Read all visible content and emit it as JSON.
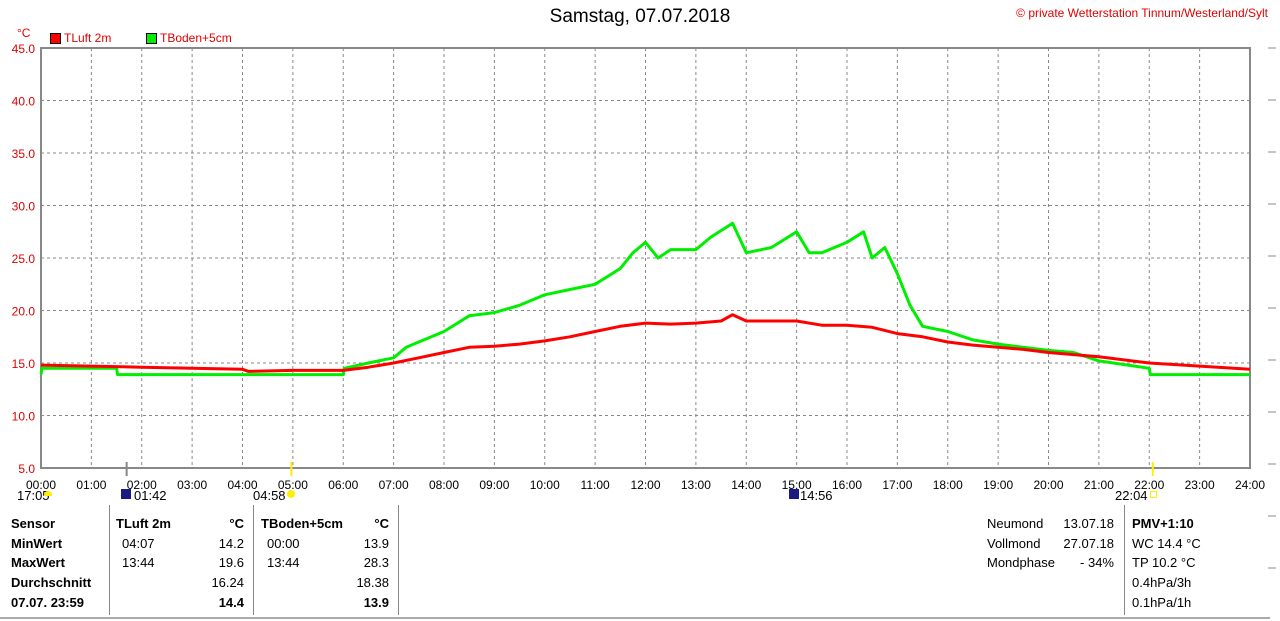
{
  "header": {
    "title": "Samstag, 07.07.2018",
    "copyright": "© private Wetterstation Tinnum/Westerland/Sylt",
    "unit": "°C"
  },
  "colors": {
    "luft": "#ff0000",
    "boden": "#00ee00"
  },
  "chart_data": {
    "type": "line",
    "title": "Samstag, 07.07.2018",
    "ylabel": "°C",
    "ylim": [
      5,
      45
    ],
    "yticks": [
      "5.0",
      "10.0",
      "15.0",
      "20.0",
      "25.0",
      "30.0",
      "35.0",
      "40.0",
      "45.0"
    ],
    "xlim": [
      0,
      24
    ],
    "xticks": [
      "00:00",
      "01:00",
      "02:00",
      "03:00",
      "04:00",
      "05:00",
      "06:00",
      "07:00",
      "08:00",
      "09:00",
      "10:00",
      "11:00",
      "12:00",
      "13:00",
      "14:00",
      "15:00",
      "16:00",
      "17:00",
      "18:00",
      "19:00",
      "20:00",
      "21:00",
      "22:00",
      "23:00",
      "24:00"
    ],
    "grid": true,
    "legend_placement": "top-left",
    "series": [
      {
        "name": "TLuft 2m",
        "color": "#ff0000",
        "x": [
          0,
          1,
          2,
          3,
          4,
          4.12,
          5,
          6,
          6.5,
          7,
          7.5,
          8,
          8.5,
          9,
          9.5,
          10,
          10.5,
          11,
          11.5,
          12,
          12.5,
          13,
          13.5,
          13.73,
          14,
          14.5,
          15,
          15.5,
          16,
          16.5,
          17,
          17.5,
          18,
          18.5,
          19,
          19.5,
          20,
          21,
          22,
          23,
          24
        ],
        "y": [
          14.8,
          14.7,
          14.6,
          14.5,
          14.4,
          14.2,
          14.3,
          14.3,
          14.6,
          15.0,
          15.5,
          16.0,
          16.5,
          16.6,
          16.8,
          17.1,
          17.5,
          18.0,
          18.5,
          18.8,
          18.7,
          18.8,
          19.0,
          19.6,
          19.0,
          19.0,
          19.0,
          18.6,
          18.6,
          18.4,
          17.8,
          17.5,
          17.0,
          16.7,
          16.5,
          16.3,
          16.0,
          15.6,
          15.0,
          14.7,
          14.4
        ]
      },
      {
        "name": "TBoden+5cm",
        "color": "#00ee00",
        "x": [
          0,
          0.02,
          1.5,
          1.52,
          6,
          6.02,
          6.5,
          7,
          7.25,
          7.5,
          8,
          8.5,
          9,
          9.5,
          10,
          10.5,
          11,
          11.5,
          11.75,
          12,
          12.25,
          12.5,
          13,
          13.3,
          13.73,
          14,
          14.5,
          15,
          15.25,
          15.5,
          16,
          16.33,
          16.5,
          16.75,
          17,
          17.25,
          17.5,
          18,
          18.5,
          19,
          20,
          20.5,
          21,
          22,
          22.02,
          24
        ],
        "y": [
          13.9,
          14.5,
          14.5,
          13.9,
          13.9,
          14.5,
          15.0,
          15.5,
          16.5,
          17.0,
          18.0,
          19.5,
          19.8,
          20.5,
          21.5,
          22.0,
          22.5,
          24.0,
          25.5,
          26.5,
          25.0,
          25.8,
          25.8,
          27.0,
          28.3,
          25.5,
          26.0,
          27.5,
          25.5,
          25.5,
          26.5,
          27.5,
          25.0,
          26.0,
          23.5,
          20.5,
          18.5,
          18.0,
          17.2,
          16.8,
          16.2,
          16.0,
          15.2,
          14.5,
          13.9,
          13.9
        ]
      }
    ]
  },
  "astro": {
    "sunset_prev": "17:05",
    "moonset": "01:42",
    "sunrise": "04:58",
    "moonrise": "14:56",
    "sunset": "22:04"
  },
  "table": {
    "row_labels": [
      "Sensor",
      "MinWert",
      "MaxWert",
      "Durchschnitt",
      "07.07. 23:59"
    ],
    "cols": [
      {
        "name": "TLuft 2m",
        "unit": "°C",
        "min_time": "04:07",
        "min": "14.2",
        "max_time": "13:44",
        "max": "19.6",
        "avg": "16.24",
        "current": "14.4"
      },
      {
        "name": "TBoden+5cm",
        "unit": "°C",
        "min_time": "00:00",
        "min": "13.9",
        "max_time": "13:44",
        "max": "28.3",
        "avg": "18.38",
        "current": "13.9"
      }
    ]
  },
  "moon": {
    "labels": [
      "Neumond",
      "Vollmond",
      "Mondphase"
    ],
    "values": [
      "13.07.18",
      "27.07.18",
      "- 34%"
    ]
  },
  "extra": {
    "pmv": "PMV+1:10",
    "wc": "WC 14.4 °C",
    "tp": "TP 10.2 °C",
    "p3h": "0.4hPa/3h",
    "p1h": "0.1hPa/1h"
  }
}
